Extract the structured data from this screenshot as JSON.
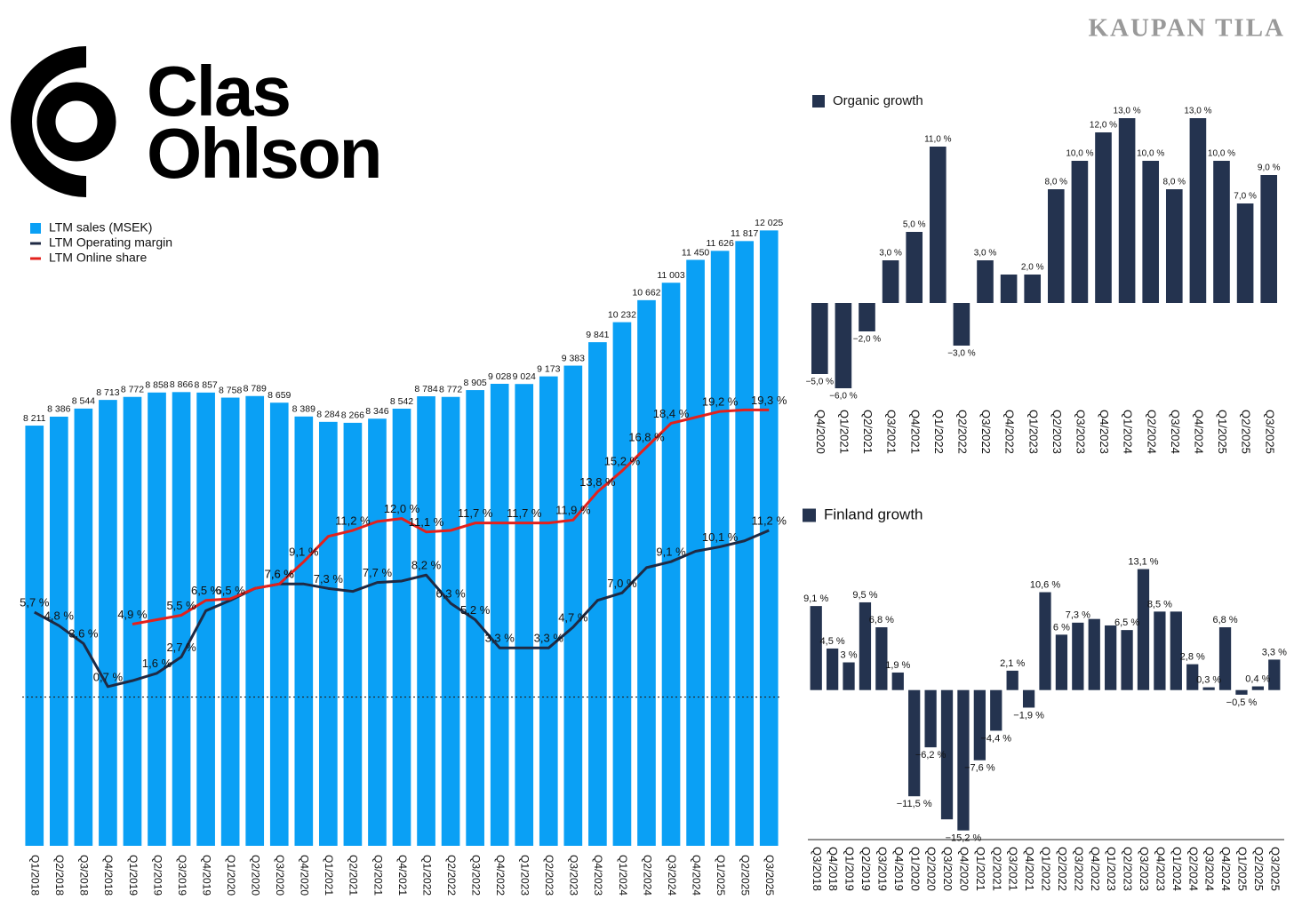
{
  "watermark": "KAUPAN TILA",
  "logo": {
    "line1": "Clas",
    "line2": "Ohlson"
  },
  "chart_data": [
    {
      "type": "bar",
      "legend": "top-left",
      "categories": [
        "Q1/2018",
        "Q2/2018",
        "Q3/2018",
        "Q4/2018",
        "Q1/2019",
        "Q2/2019",
        "Q3/2019",
        "Q4/2019",
        "Q1/2020",
        "Q2/2020",
        "Q3/2020",
        "Q4/2020",
        "Q1/2021",
        "Q2/2021",
        "Q3/2021",
        "Q4/2021",
        "Q1/2022",
        "Q2/2022",
        "Q3/2022",
        "Q4/2022",
        "Q1/2023",
        "Q2/2023",
        "Q3/2023",
        "Q4/2023",
        "Q1/2024",
        "Q2/2024",
        "Q3/2024",
        "Q4/2024",
        "Q1/2025",
        "Q2/2025",
        "Q3/2025"
      ],
      "ylim": [
        0,
        12500
      ],
      "y2lim": [
        -10,
        33
      ],
      "series": [
        {
          "name": "LTM sales (MSEK)",
          "type": "bar",
          "color": "#0aa0f5",
          "values": [
            8211,
            8386,
            8544,
            8713,
            8772,
            8858,
            8866,
            8857,
            8758,
            8789,
            8659,
            8389,
            8284,
            8266,
            8346,
            8542,
            8784,
            8772,
            8905,
            9028,
            9024,
            9173,
            9383,
            9841,
            10232,
            10662,
            11003,
            11450,
            11626,
            11817,
            12025
          ],
          "value_labels": [
            "8 211",
            "8 386",
            "8 544",
            "8 713",
            "8 772",
            "8 858",
            "8 866",
            "8 857",
            "8 758",
            "8 789",
            "8 659",
            "8 389",
            "8 284",
            "8 266",
            "8 346",
            "8 542",
            "8 784",
            "8 772",
            "8 905",
            "9 028",
            "9 024",
            "9 173",
            "9 383",
            "9 841",
            "10 232",
            "10 662",
            "11 003",
            "11 450",
            "11 626",
            "11 817",
            "12 025"
          ]
        },
        {
          "name": "LTM Operating margin",
          "type": "line",
          "axis": "y2",
          "color": "#1f2a44",
          "values": [
            5.7,
            4.8,
            3.6,
            0.7,
            1.1,
            1.6,
            2.7,
            5.8,
            6.5,
            7.3,
            7.6,
            7.6,
            7.3,
            7.1,
            7.7,
            7.8,
            8.2,
            6.3,
            5.2,
            3.3,
            3.3,
            3.3,
            4.7,
            6.5,
            7.0,
            8.7,
            9.1,
            9.8,
            10.1,
            10.5,
            11.2
          ],
          "value_labels": [
            "5,7 %",
            "4,8 %",
            "3,6 %",
            "0,7 %",
            null,
            "1,6 %",
            "2,7 %",
            null,
            "6,5 %",
            null,
            "7,6 %",
            null,
            "7,3 %",
            null,
            "7,7 %",
            null,
            "8,2 %",
            "6,3 %",
            "5,2 %",
            "3,3 %",
            null,
            "3,3 %",
            "4,7 %",
            null,
            "7,0 %",
            null,
            "9,1 %",
            null,
            "10,1 %",
            null,
            "11,2 %"
          ]
        },
        {
          "name": "LTM Online share",
          "type": "line",
          "axis": "y2",
          "color": "#e3211c",
          "values": [
            null,
            null,
            null,
            null,
            4.9,
            5.2,
            5.5,
            6.5,
            6.6,
            7.3,
            7.6,
            9.1,
            10.8,
            11.2,
            11.8,
            12.0,
            11.1,
            11.2,
            11.7,
            11.7,
            11.7,
            11.7,
            11.9,
            13.8,
            15.2,
            16.8,
            18.4,
            18.8,
            19.2,
            19.3,
            19.3
          ],
          "value_labels": [
            null,
            null,
            null,
            null,
            "4,9 %",
            null,
            "5,5 %",
            "6,5 %",
            null,
            null,
            "7,6 %",
            "9,1 %",
            null,
            "11,2 %",
            null,
            "12,0 %",
            "11,1 %",
            null,
            "11,7 %",
            null,
            "11,7 %",
            null,
            "11,9 %",
            "13,8 %",
            "15,2 %",
            "16,8 %",
            "18,4 %",
            null,
            "19,2 %",
            null,
            "19,3 %"
          ]
        }
      ]
    },
    {
      "type": "bar",
      "legend": "top-left",
      "categories": [
        "Q4/2020",
        "Q1/2021",
        "Q2/2021",
        "Q3/2021",
        "Q4/2021",
        "Q1/2022",
        "Q2/2022",
        "Q3/2022",
        "Q4/2022",
        "Q1/2023",
        "Q2/2023",
        "Q3/2023",
        "Q4/2023",
        "Q1/2024",
        "Q2/2024",
        "Q3/2024",
        "Q4/2024",
        "Q1/2025",
        "Q2/2025",
        "Q3/2025"
      ],
      "ylim": [
        -7,
        14
      ],
      "series": [
        {
          "name": "Organic growth",
          "type": "bar",
          "color": "#24334f",
          "values": [
            -5,
            -6,
            -2,
            3,
            5,
            11,
            -3,
            3,
            2,
            2,
            8,
            10,
            12,
            13,
            10,
            8,
            13,
            10,
            7,
            9
          ],
          "value_labels": [
            "−5,0 %",
            "−6,0 %",
            "−2,0 %",
            "3,0 %",
            "5,0 %",
            "11,0 %",
            "−3,0 %",
            "3,0 %",
            null,
            "2,0 %",
            "8,0 %",
            "10,0 %",
            "12,0 %",
            "13,0 %",
            "10,0 %",
            "8,0 %",
            "13,0 %",
            "10,0 %",
            "7,0 %",
            "9,0 %"
          ]
        }
      ]
    },
    {
      "type": "bar",
      "legend": "top-left",
      "categories": [
        "Q3/2018",
        "Q4/2018",
        "Q1/2019",
        "Q2/2019",
        "Q3/2019",
        "Q4/2019",
        "Q1/2020",
        "Q2/2020",
        "Q3/2020",
        "Q4/2020",
        "Q1/2021",
        "Q2/2021",
        "Q3/2021",
        "Q4/2021",
        "Q1/2022",
        "Q2/2022",
        "Q3/2022",
        "Q4/2022",
        "Q1/2023",
        "Q2/2023",
        "Q3/2023",
        "Q4/2023",
        "Q1/2024",
        "Q2/2024",
        "Q3/2024",
        "Q4/2024",
        "Q1/2025",
        "Q2/2025",
        "Q3/2025"
      ],
      "ylim": [
        -16,
        14.5
      ],
      "series": [
        {
          "name": "Finland growth",
          "type": "bar",
          "color": "#24334f",
          "values": [
            9.1,
            4.5,
            3,
            9.5,
            6.8,
            1.9,
            -11.5,
            -6.2,
            -14,
            -15.2,
            -7.6,
            -4.4,
            2.1,
            -1.9,
            10.6,
            6,
            7.3,
            7.7,
            7,
            6.5,
            13.1,
            8.5,
            8.5,
            2.8,
            0.3,
            6.8,
            -0.5,
            0.4,
            3.3
          ],
          "value_labels": [
            "9,1 %",
            "4,5 %",
            "3 %",
            "9,5 %",
            "6,8 %",
            "1,9 %",
            "−11,5 %",
            "−6,2 %",
            null,
            "−15,2 %",
            "−7,6 %",
            "−4,4 %",
            "2,1 %",
            "−1,9 %",
            "10,6 %",
            "6 %",
            "7,3 %",
            null,
            null,
            "6,5 %",
            "13,1 %",
            "8,5 %",
            null,
            "2,8 %",
            "0,3 %",
            "6,8 %",
            "−0,5 %",
            "0,4 %",
            "3,3 %"
          ]
        }
      ]
    }
  ]
}
